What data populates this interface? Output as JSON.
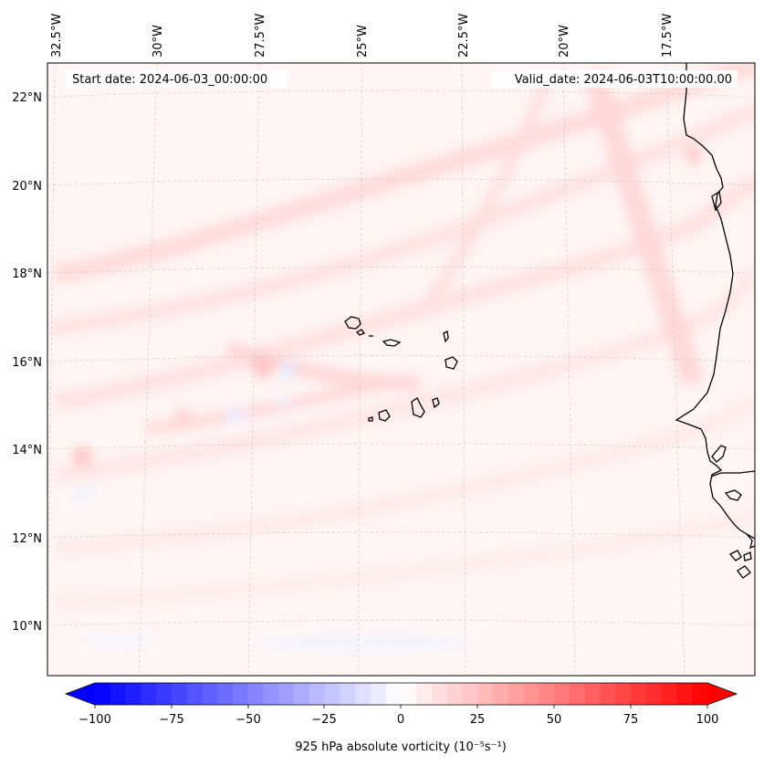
{
  "map": {
    "start_date": "Start date: 2024-06-03_00:00:00",
    "valid_date": "Valid_date: 2024-06-03T10:00:00.00",
    "lon_labels": [
      "32.5°W",
      "30°W",
      "27.5°W",
      "25°W",
      "22.5°W",
      "20°W",
      "17.5°W"
    ],
    "lat_labels": [
      "22°N",
      "20°N",
      "18°N",
      "16°N",
      "14°N",
      "12°N",
      "10°N"
    ],
    "coastline_color": "#000000",
    "gridline_color": "#b0b0b0"
  },
  "colorbar": {
    "label": "925 hPa absolute vorticity (10⁻⁵s⁻¹)",
    "ticks": [
      "−100",
      "−75",
      "−50",
      "−25",
      "0",
      "25",
      "50",
      "75",
      "100"
    ],
    "min_value": -100,
    "max_value": 100,
    "negative_color": "#0000ff",
    "zero_color": "#ffffff",
    "positive_color": "#ff0000",
    "extend": "both"
  }
}
